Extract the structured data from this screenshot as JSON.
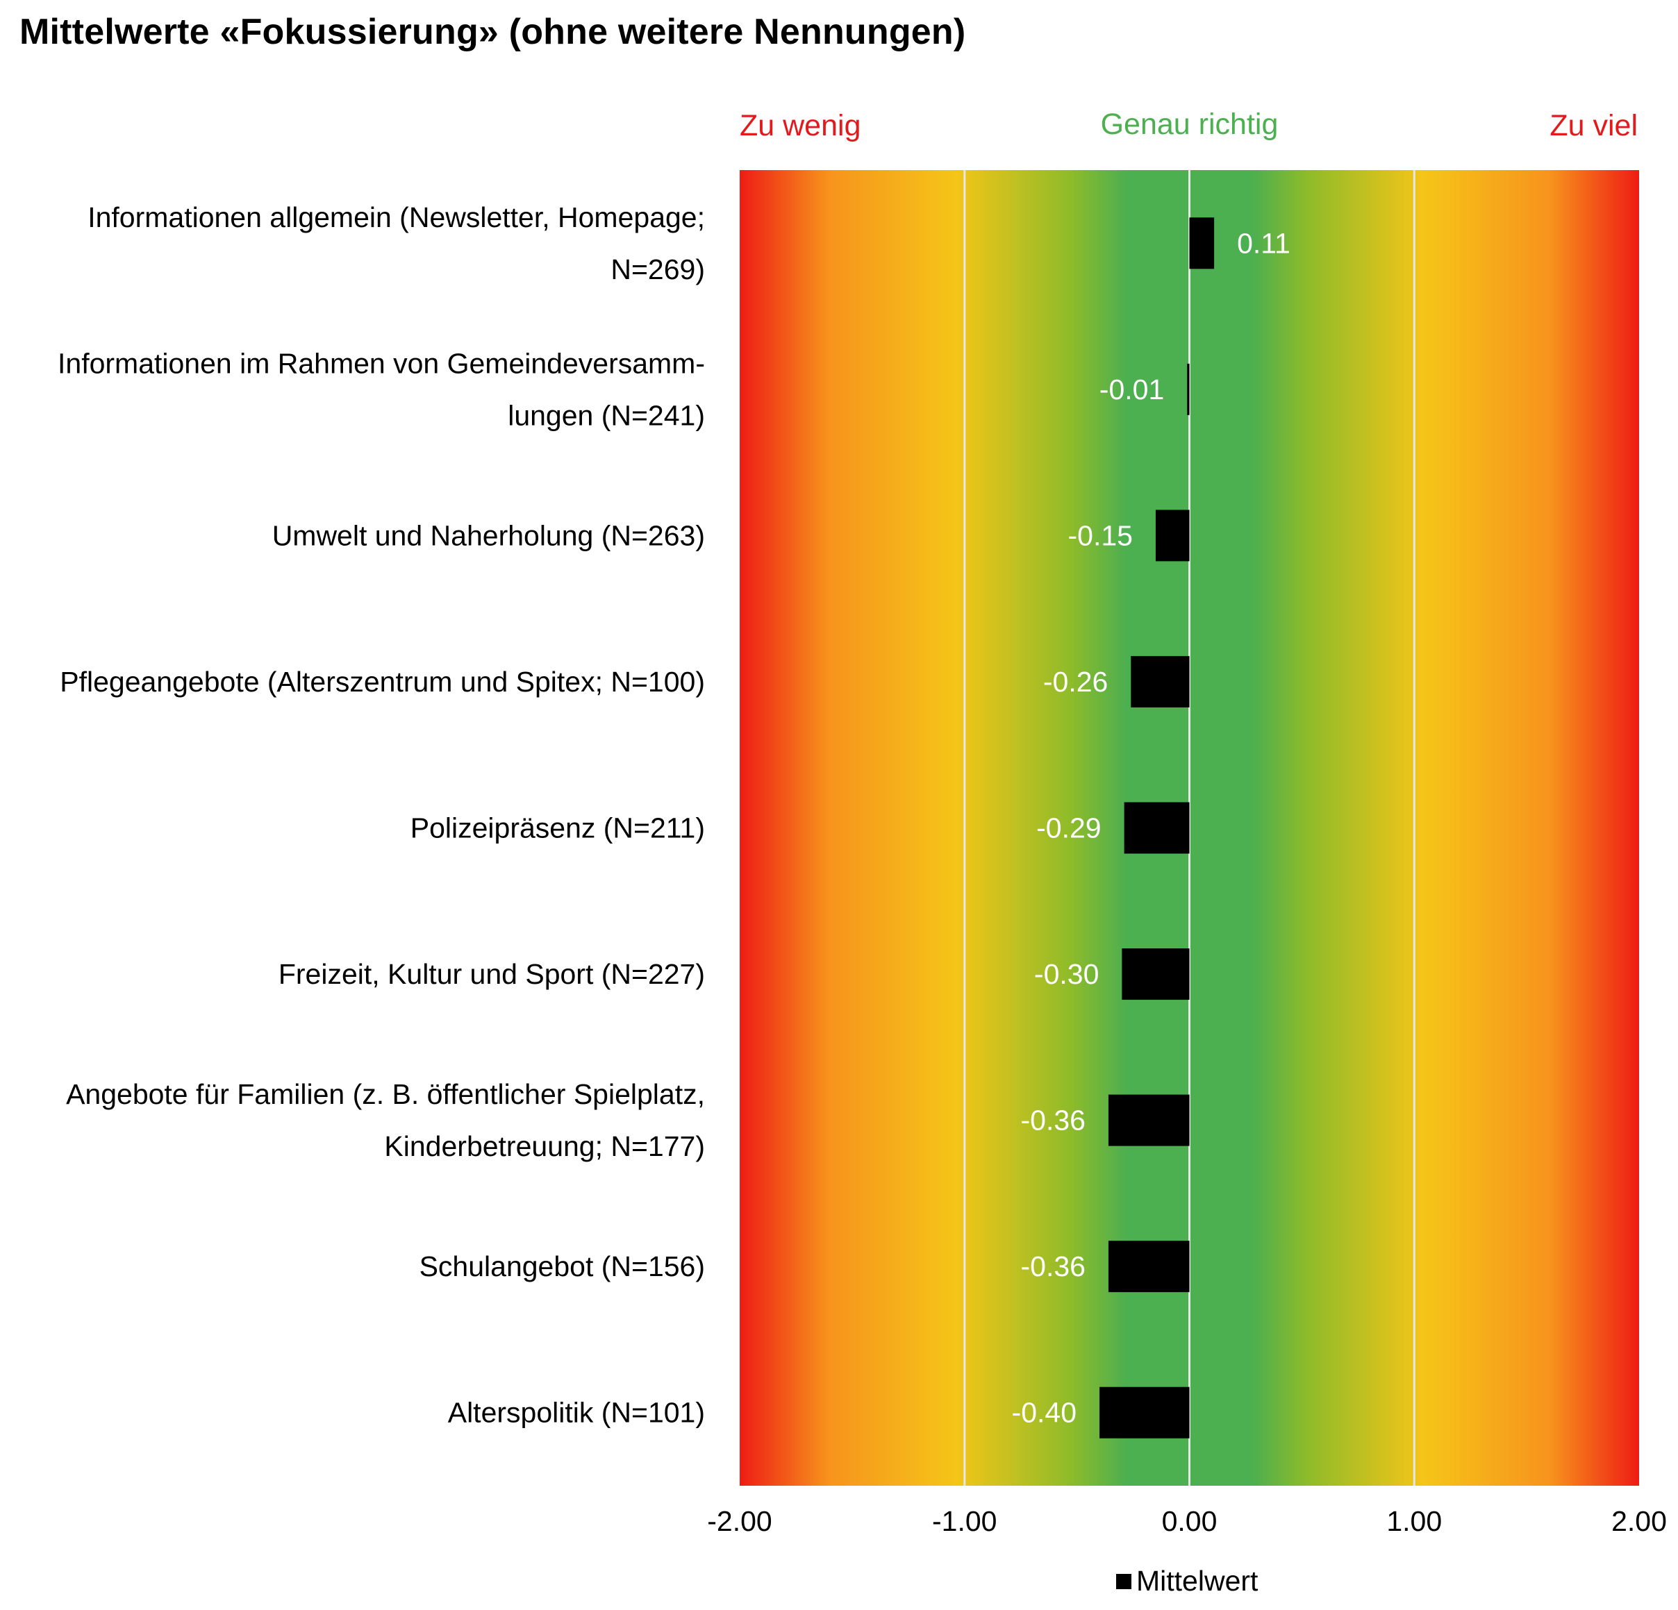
{
  "title": "Mittelwerte «Fokussierung» (ohne weitere Nennungen)",
  "zone_labels": {
    "left": "Zu wenig",
    "center": "Genau richtig",
    "right": "Zu viel"
  },
  "colors": {
    "left_label": "#e31a1c",
    "center_label": "#4caf50",
    "right_label": "#e31a1c",
    "gradient_red": "#ee1c14",
    "gradient_orange": "#f7941d",
    "gradient_yellow": "#f5c518",
    "gradient_olive": "#8dbb2a",
    "gradient_green": "#4caf50",
    "bar": "#000000",
    "gridline": "#e6e6e6"
  },
  "chart_data": {
    "type": "bar",
    "orientation": "horizontal",
    "title": "Mittelwerte «Fokussierung» (ohne weitere Nennungen)",
    "categories": [
      [
        "Informationen allgemein (Newsletter, Homepage;",
        "N=269)"
      ],
      [
        "Informationen im Rahmen von Gemeindeversamm-",
        "lungen (N=241)"
      ],
      [
        "Umwelt und Naherholung (N=263)"
      ],
      [
        "Pflegeangebote (Alterszentrum und Spitex; N=100)"
      ],
      [
        "Polizeipräsenz (N=211)"
      ],
      [
        "Freizeit, Kultur und Sport (N=227)"
      ],
      [
        "Angebote für Familien (z. B. öffentlicher Spielplatz,",
        "Kinderbetreuung; N=177)"
      ],
      [
        "Schulangebot (N=156)"
      ],
      [
        "Alterspolitik (N=101)"
      ]
    ],
    "series": [
      {
        "name": "Mittelwert",
        "values": [
          0.11,
          -0.01,
          -0.15,
          -0.26,
          -0.29,
          -0.3,
          -0.36,
          -0.36,
          -0.4
        ],
        "labels": [
          "0.11",
          "-0.01",
          "-0.15",
          "-0.26",
          "-0.29",
          "-0.30",
          "-0.36",
          "-0.36",
          "-0.40"
        ]
      }
    ],
    "xlim": [
      -2,
      2
    ],
    "xticks": [
      -2,
      -1,
      0,
      1,
      2
    ],
    "xtick_labels": [
      "-2.00",
      "-1.00",
      "0.00",
      "1.00",
      "2.00"
    ],
    "grid": true,
    "legend": {
      "position": "bottom",
      "entries": [
        "Mittelwert"
      ]
    }
  }
}
